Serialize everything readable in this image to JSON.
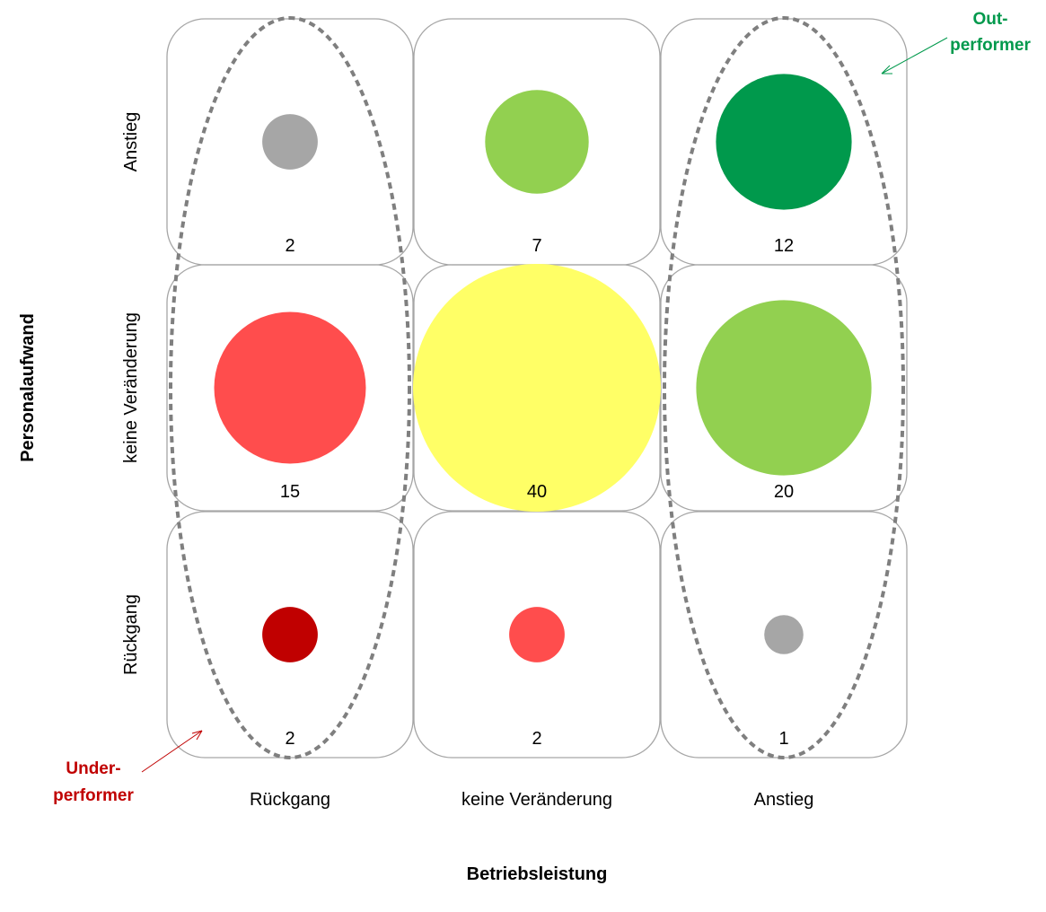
{
  "chart_data": {
    "type": "bubble-matrix",
    "xlabel": "Betriebsleistung",
    "ylabel": "Personalaufwand",
    "x_categories": [
      "Rückgang",
      "keine Veränderung",
      "Anstieg"
    ],
    "y_categories": [
      "Rückgang",
      "keine Veränderung",
      "Anstieg"
    ],
    "cells": [
      {
        "x": "Rückgang",
        "y": "Anstieg",
        "value": 2,
        "color": "#a6a6a6"
      },
      {
        "x": "keine Veränderung",
        "y": "Anstieg",
        "value": 7,
        "color": "#92d050"
      },
      {
        "x": "Anstieg",
        "y": "Anstieg",
        "value": 12,
        "color": "#00994c"
      },
      {
        "x": "Rückgang",
        "y": "keine Veränderung",
        "value": 15,
        "color": "#ff4d4d"
      },
      {
        "x": "keine Veränderung",
        "y": "keine Veränderung",
        "value": 40,
        "color": "#ffff66"
      },
      {
        "x": "Anstieg",
        "y": "keine Veränderung",
        "value": 20,
        "color": "#92d050"
      },
      {
        "x": "Rückgang",
        "y": "Rückgang",
        "value": 2,
        "color": "#c00000"
      },
      {
        "x": "keine Veränderung",
        "y": "Rückgang",
        "value": 2,
        "color": "#ff4d4d"
      },
      {
        "x": "Anstieg",
        "y": "Rückgang",
        "value": 1,
        "color": "#a6a6a6"
      }
    ],
    "annotations": {
      "outperformer": {
        "text_line1": "Out-",
        "text_line2": "performer",
        "color": "#00994c"
      },
      "underperformer": {
        "text_line1": "Under-",
        "text_line2": "performer",
        "color": "#c00000"
      }
    }
  }
}
